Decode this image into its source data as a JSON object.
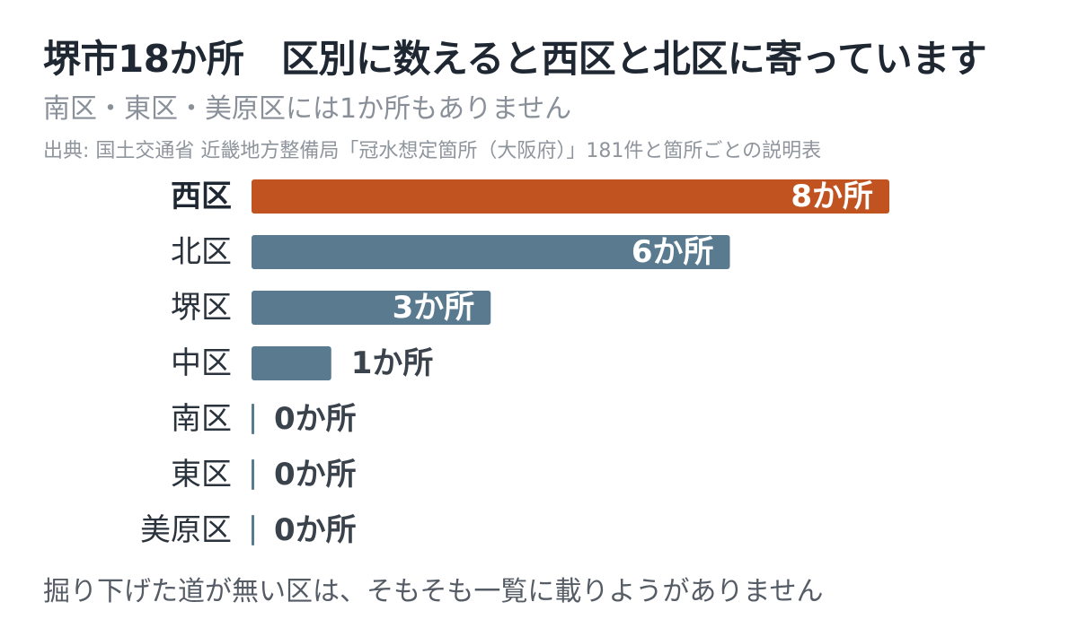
{
  "header": {
    "title": "堺市18か所　区別に数えると西区と北区に寄っています",
    "subtitle": "南区・東区・美原区には1か所もありません",
    "source": "出典: 国土交通省 近畿地方整備局「冠水想定箇所（大阪府）」181件と箇所ごとの説明表"
  },
  "footer": {
    "note": "掘り下げた道が無い区は、そもそも一覧に載りようがありません"
  },
  "colors": {
    "highlight": "#c0531f",
    "default": "#5a7a90",
    "label_inside": "#ffffff",
    "label_outside": "#3a424c"
  },
  "chart_data": {
    "type": "bar",
    "orientation": "horizontal",
    "categories": [
      "西区",
      "北区",
      "堺区",
      "中区",
      "南区",
      "東区",
      "美原区"
    ],
    "values": [
      8,
      6,
      3,
      1,
      0,
      0,
      0
    ],
    "value_labels": [
      "8か所",
      "6か所",
      "3か所",
      "1か所",
      "0か所",
      "0か所",
      "0か所"
    ],
    "highlight_category": "西区",
    "xlim": [
      0,
      8
    ],
    "grid": false,
    "legend": "none"
  }
}
